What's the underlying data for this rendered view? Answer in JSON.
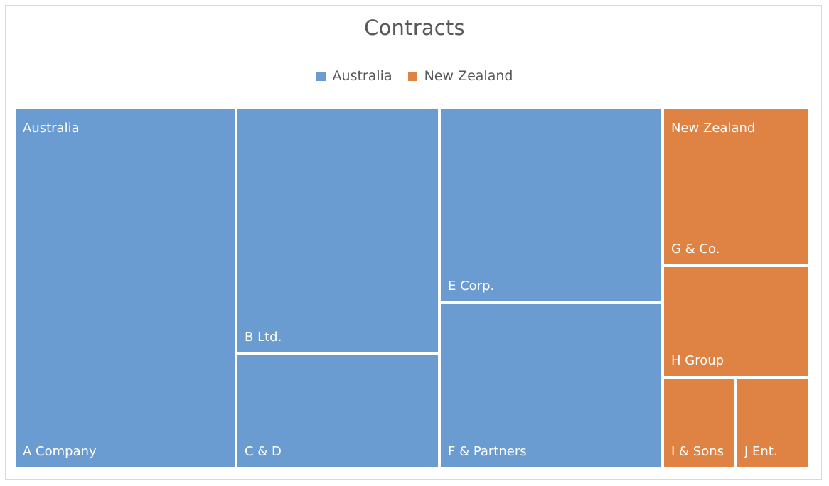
{
  "chart_data": {
    "type": "treemap",
    "title": "Contracts",
    "legend": {
      "placement": "top",
      "entries": [
        {
          "name": "Australia",
          "color": "#6A9BD1"
        },
        {
          "name": "New Zealand",
          "color": "#DF8344"
        }
      ]
    },
    "groups": [
      {
        "name": "Australia",
        "color": "#6A9BD1",
        "items": [
          {
            "label": "A Company"
          },
          {
            "label": "B Ltd."
          },
          {
            "label": "C & D"
          },
          {
            "label": "E Corp."
          },
          {
            "label": "F & Partners"
          }
        ]
      },
      {
        "name": "New Zealand",
        "color": "#DF8344",
        "items": [
          {
            "label": "G & Co."
          },
          {
            "label": "H Group"
          },
          {
            "label": "I & Sons"
          },
          {
            "label": "J Ent."
          }
        ]
      }
    ]
  }
}
